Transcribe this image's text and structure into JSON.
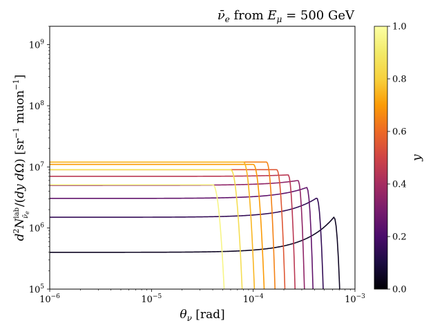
{
  "chart_data": {
    "type": "line",
    "title": "ν̄e from Eμ = 500 GeV",
    "xlabel": "θν [rad]",
    "ylabel": "d²N lab ν̄e / (dy dΩ)  [sr⁻¹ muon⁻¹]",
    "xscale": "log",
    "yscale": "log",
    "xlim": [
      1e-06,
      0.001
    ],
    "ylim": [
      100000.0,
      2000000000.0
    ],
    "x_ticks": [
      {
        "value": 1e-06,
        "base": "10",
        "exp": "−6"
      },
      {
        "value": 1e-05,
        "base": "10",
        "exp": "−5"
      },
      {
        "value": 0.0001,
        "base": "10",
        "exp": "−4"
      },
      {
        "value": 0.001,
        "base": "10",
        "exp": "−3"
      }
    ],
    "y_ticks": [
      {
        "value": 100000.0,
        "base": "10",
        "exp": "5"
      },
      {
        "value": 1000000.0,
        "base": "10",
        "exp": "6"
      },
      {
        "value": 10000000.0,
        "base": "10",
        "exp": "7"
      },
      {
        "value": 100000000.0,
        "base": "10",
        "exp": "8"
      },
      {
        "value": 1000000000.0,
        "base": "10",
        "exp": "9"
      }
    ],
    "colorbar": {
      "label": "y",
      "range": [
        0.0,
        1.0
      ],
      "colormap": "inferno",
      "ticks": [
        "0.0",
        "0.2",
        "0.4",
        "0.6",
        "0.8",
        "1.0"
      ]
    },
    "series_note": "one curve per y value; plateau amplitude, peak location and angular cutoff (rad)",
    "series": [
      {
        "y": 0.05,
        "plateau": 400000.0,
        "peak": 1500000.0,
        "peak_x": 0.00062,
        "cutoff": 0.00078
      },
      {
        "y": 0.15,
        "plateau": 1500000.0,
        "peak": 3100000.0,
        "peak_x": 0.00042,
        "cutoff": 0.00053
      },
      {
        "y": 0.25,
        "plateau": 3050000.0,
        "peak": 4600000.0,
        "peak_x": 0.000335,
        "cutoff": 0.000415
      },
      {
        "y": 0.35,
        "plateau": 5000000.0,
        "peak": 6000000.0,
        "peak_x": 0.000275,
        "cutoff": 0.00034
      },
      {
        "y": 0.45,
        "plateau": 7000000.0,
        "peak": 7400000.0,
        "peak_x": 0.00022,
        "cutoff": 0.000275
      },
      {
        "y": 0.55,
        "plateau": 9000000.0,
        "peak": 9000000.0,
        "peak_x": 0.00017,
        "cutoff": 0.00022
      },
      {
        "y": 0.65,
        "plateau": 12000000.0,
        "peak": 12000000.0,
        "peak_x": 0.000135,
        "cutoff": 0.000175
      },
      {
        "y": 0.7,
        "plateau": 11000000.0,
        "peak": 11000000.0,
        "peak_x": 0.0001,
        "cutoff": 0.00014
      },
      {
        "y": 0.75,
        "plateau": 12000000.0,
        "peak": 12000000.0,
        "peak_x": 8e-05,
        "cutoff": 0.000112
      },
      {
        "y": 0.85,
        "plateau": 9000000.0,
        "peak": 9000000.0,
        "peak_x": 6e-05,
        "cutoff": 8.6e-05
      },
      {
        "y": 0.95,
        "plateau": 5100000.0,
        "peak": 5100000.0,
        "peak_x": 4e-05,
        "cutoff": 5.85e-05
      }
    ]
  }
}
